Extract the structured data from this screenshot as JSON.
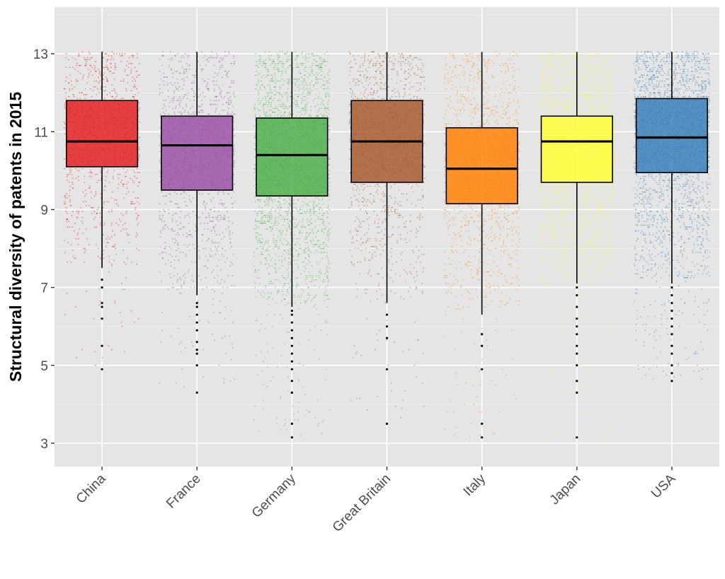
{
  "chart_data": {
    "type": "boxplot",
    "title": "",
    "xlabel": "",
    "ylabel": "Structural diversity of patents in 2015",
    "ylim": [
      2.4,
      14.2
    ],
    "y_ticks": [
      3,
      5,
      7,
      9,
      11,
      13
    ],
    "y_tick_labels": [
      "3",
      "5",
      "7",
      "9",
      "11",
      "13"
    ],
    "grid": true,
    "legend": "none",
    "panel_background": "#e5e5e5",
    "categories": [
      "China",
      "France",
      "Germany",
      "Great Britain",
      "Italy",
      "Japan",
      "USA"
    ],
    "series": [
      {
        "category": "China",
        "color": "#e41a1c",
        "q1": 10.1,
        "median": 10.75,
        "q3": 11.8,
        "whisker_low": 7.5,
        "whisker_high": 13.05,
        "outliers": [
          7.2,
          7.0,
          6.6,
          6.5,
          6.2,
          5.5,
          4.9
        ],
        "jitter_min": 4.9,
        "jitter_max": 13.05,
        "jitter_count": 1100
      },
      {
        "category": "France",
        "color": "#984ea3",
        "q1": 9.5,
        "median": 10.65,
        "q3": 11.4,
        "whisker_low": 6.8,
        "whisker_high": 13.05,
        "outliers": [
          6.6,
          6.5,
          6.3,
          6.1,
          5.9,
          5.6,
          5.4,
          5.3,
          5.0,
          4.3
        ],
        "jitter_min": 4.3,
        "jitter_max": 13.05,
        "jitter_count": 1500
      },
      {
        "category": "Germany",
        "color": "#4daf4a",
        "q1": 9.35,
        "median": 10.4,
        "q3": 11.35,
        "whisker_low": 6.5,
        "whisker_high": 13.05,
        "outliers": [
          6.4,
          6.3,
          6.1,
          5.9,
          5.7,
          5.5,
          5.3,
          5.1,
          4.9,
          4.6,
          4.3,
          3.5,
          3.15
        ],
        "jitter_min": 3.15,
        "jitter_max": 13.05,
        "jitter_count": 3000
      },
      {
        "category": "Great Britain",
        "color": "#a65628",
        "q1": 9.7,
        "median": 10.75,
        "q3": 11.8,
        "whisker_low": 6.6,
        "whisker_high": 13.05,
        "outliers": [
          6.3,
          6.0,
          5.7,
          4.9,
          3.5
        ],
        "jitter_min": 3.5,
        "jitter_max": 13.05,
        "jitter_count": 1300
      },
      {
        "category": "Italy",
        "color": "#ff7f00",
        "q1": 9.15,
        "median": 10.05,
        "q3": 11.1,
        "whisker_low": 6.3,
        "whisker_high": 13.05,
        "outliers": [
          5.8,
          5.5,
          4.9,
          3.5,
          3.15
        ],
        "jitter_min": 3.15,
        "jitter_max": 13.05,
        "jitter_count": 1500
      },
      {
        "category": "Japan",
        "color": "#ffff33",
        "q1": 9.7,
        "median": 10.75,
        "q3": 11.4,
        "whisker_low": 7.1,
        "whisker_high": 13.05,
        "outliers": [
          7.0,
          6.8,
          6.5,
          6.2,
          6.0,
          5.8,
          5.5,
          5.3,
          5.0,
          4.6,
          4.3,
          3.15
        ],
        "jitter_min": 3.15,
        "jitter_max": 13.05,
        "jitter_count": 2500
      },
      {
        "category": "USA",
        "color": "#377eb8",
        "q1": 9.95,
        "median": 10.85,
        "q3": 11.85,
        "whisker_low": 7.1,
        "whisker_high": 13.05,
        "outliers": [
          7.0,
          6.8,
          6.6,
          6.4,
          6.2,
          6.0,
          5.8,
          5.5,
          5.3,
          5.0,
          4.8,
          4.6
        ],
        "jitter_min": 4.6,
        "jitter_max": 13.05,
        "jitter_count": 2800
      }
    ]
  }
}
